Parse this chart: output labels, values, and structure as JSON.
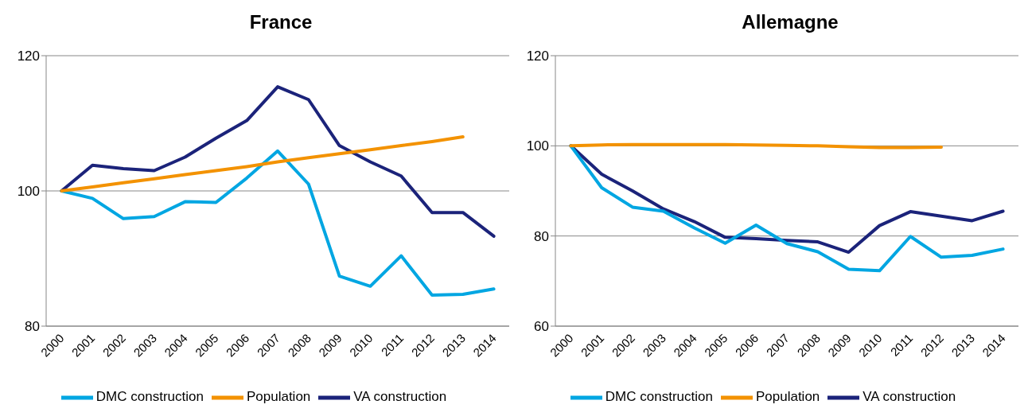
{
  "chart_data": [
    {
      "type": "line",
      "title": "France",
      "categories": [
        "2000",
        "2001",
        "2002",
        "2003",
        "2004",
        "2005",
        "2006",
        "2007",
        "2008",
        "2009",
        "2010",
        "2011",
        "2012",
        "2013",
        "2014"
      ],
      "series": [
        {
          "name": "VA construction",
          "color": "#1b237a",
          "values": [
            100,
            103.8,
            103.3,
            103.0,
            105.0,
            107.8,
            110.4,
            115.4,
            113.5,
            106.7,
            104.3,
            102.2,
            96.8,
            96.8,
            93.3
          ]
        },
        {
          "name": "DMC construction",
          "color": "#00a6e2",
          "values": [
            100,
            98.9,
            95.9,
            96.2,
            98.4,
            98.3,
            101.9,
            105.9,
            101.0,
            87.4,
            85.9,
            90.4,
            84.6,
            84.7,
            85.5
          ]
        },
        {
          "name": "Population",
          "color": "#f39200",
          "values": [
            100,
            100.6,
            101.2,
            101.8,
            102.4,
            103.0,
            103.6,
            104.3,
            104.9,
            105.5,
            106.1,
            106.7,
            107.3,
            108.0,
            null
          ]
        }
      ],
      "ylim": [
        80,
        120
      ],
      "yticks": [
        80,
        100,
        120
      ],
      "grid": "y",
      "legend": "bottom",
      "marker": "none",
      "line_style": "solid"
    },
    {
      "type": "line",
      "title": "Allemagne",
      "categories": [
        "2000",
        "2001",
        "2002",
        "2003",
        "2004",
        "2005",
        "2006",
        "2007",
        "2008",
        "2009",
        "2010",
        "2011",
        "2012",
        "2013",
        "2014"
      ],
      "series": [
        {
          "name": "VA construction",
          "color": "#1b237a",
          "values": [
            100,
            93.7,
            90.0,
            86.0,
            83.2,
            79.7,
            79.4,
            79.0,
            78.7,
            76.4,
            82.3,
            85.4,
            84.4,
            83.4,
            85.5
          ]
        },
        {
          "name": "DMC construction",
          "color": "#00a6e2",
          "values": [
            100,
            90.7,
            86.4,
            85.5,
            81.8,
            78.4,
            82.4,
            78.3,
            76.5,
            72.6,
            72.3,
            79.9,
            75.3,
            75.7,
            77.1
          ]
        },
        {
          "name": "Population",
          "color": "#f39200",
          "values": [
            100,
            100.2,
            100.3,
            100.3,
            100.3,
            100.3,
            100.2,
            100.1,
            100.0,
            99.8,
            99.6,
            99.6,
            99.7,
            null,
            null
          ]
        }
      ],
      "ylim": [
        60,
        120
      ],
      "yticks": [
        60,
        80,
        100,
        120
      ],
      "grid": "y",
      "legend": "bottom",
      "marker": "none",
      "line_style": "solid"
    }
  ]
}
